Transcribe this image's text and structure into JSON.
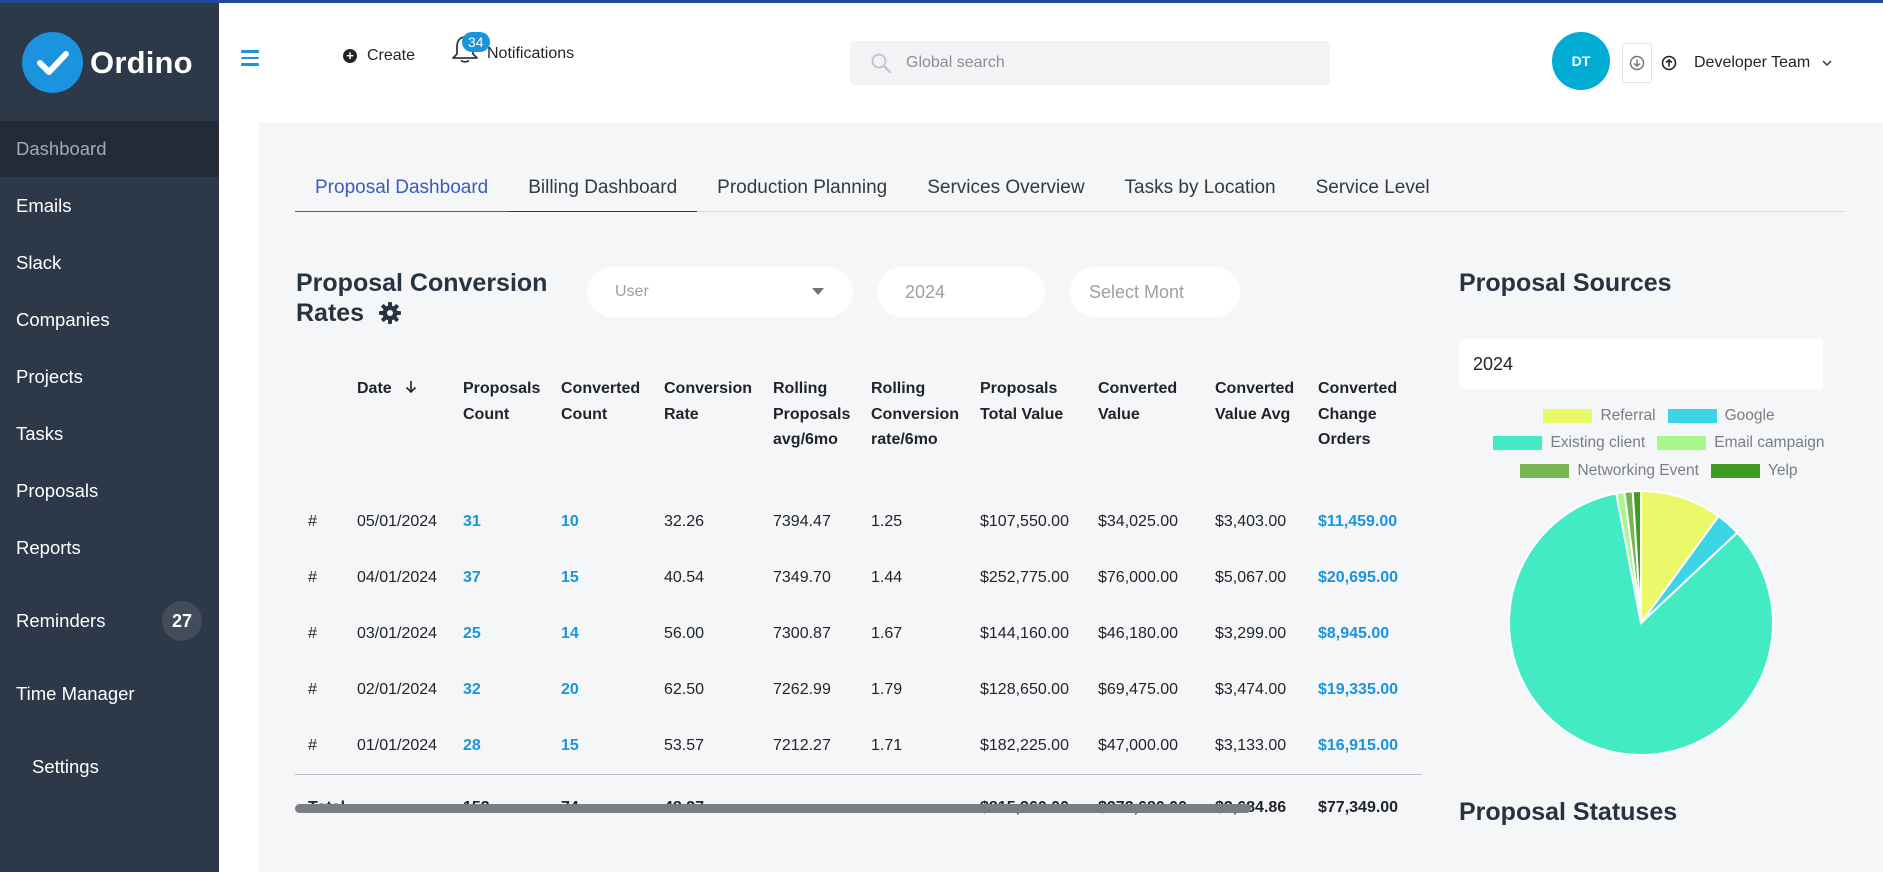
{
  "app": {
    "name": "Ordino"
  },
  "sidebar": {
    "items": [
      {
        "label": "Dashboard",
        "active": true
      },
      {
        "label": "Emails"
      },
      {
        "label": "Slack"
      },
      {
        "label": "Companies"
      },
      {
        "label": "Projects"
      },
      {
        "label": "Tasks"
      },
      {
        "label": "Proposals"
      },
      {
        "label": "Reports"
      },
      {
        "label": "Reminders",
        "badge": "27"
      },
      {
        "label": "Time Manager"
      },
      {
        "label": "Settings"
      }
    ]
  },
  "header": {
    "create_label": "Create",
    "notifications_label": "Notifications",
    "notifications_count": "34",
    "search_placeholder": "Global search",
    "avatar_initials": "DT",
    "team_label": "Developer Team"
  },
  "tabs": [
    {
      "label": "Proposal Dashboard",
      "active": true
    },
    {
      "label": "Billing Dashboard"
    },
    {
      "label": "Production Planning"
    },
    {
      "label": "Services Overview"
    },
    {
      "label": "Tasks by Location"
    },
    {
      "label": "Service Level"
    }
  ],
  "conversion": {
    "title_line1": "Proposal Conversion",
    "title_line2": "Rates",
    "filters": {
      "user_placeholder": "User",
      "year_placeholder": "2024",
      "month_placeholder": "Select Mont"
    },
    "columns": {
      "index": "",
      "date": "Date",
      "proposals_count": "Proposals Count",
      "converted_count": "Converted Count",
      "conversion_rate": "Conversion Rate",
      "rolling_proposals": "Rolling Proposals avg/6mo",
      "rolling_conversion": "Rolling Conversion rate/6mo",
      "proposals_total_value": "Proposals Total Value",
      "converted_value": "Converted Value",
      "converted_value_avg": "Converted Value Avg",
      "converted_change_orders": "Converted Change Orders"
    },
    "rows": [
      {
        "index": "#",
        "date": "05/01/2024",
        "proposals_count": "31",
        "converted_count": "10",
        "conversion_rate": "32.26",
        "rolling_proposals": "7394.47",
        "rolling_conversion": "1.25",
        "proposals_total_value": "$107,550.00",
        "converted_value": "$34,025.00",
        "converted_value_avg": "$3,403.00",
        "converted_change_orders": "$11,459.00"
      },
      {
        "index": "#",
        "date": "04/01/2024",
        "proposals_count": "37",
        "converted_count": "15",
        "conversion_rate": "40.54",
        "rolling_proposals": "7349.70",
        "rolling_conversion": "1.44",
        "proposals_total_value": "$252,775.00",
        "converted_value": "$76,000.00",
        "converted_value_avg": "$5,067.00",
        "converted_change_orders": "$20,695.00"
      },
      {
        "index": "#",
        "date": "03/01/2024",
        "proposals_count": "25",
        "converted_count": "14",
        "conversion_rate": "56.00",
        "rolling_proposals": "7300.87",
        "rolling_conversion": "1.67",
        "proposals_total_value": "$144,160.00",
        "converted_value": "$46,180.00",
        "converted_value_avg": "$3,299.00",
        "converted_change_orders": "$8,945.00"
      },
      {
        "index": "#",
        "date": "02/01/2024",
        "proposals_count": "32",
        "converted_count": "20",
        "conversion_rate": "62.50",
        "rolling_proposals": "7262.99",
        "rolling_conversion": "1.79",
        "proposals_total_value": "$128,650.00",
        "converted_value": "$69,475.00",
        "converted_value_avg": "$3,474.00",
        "converted_change_orders": "$19,335.00"
      },
      {
        "index": "#",
        "date": "01/01/2024",
        "proposals_count": "28",
        "converted_count": "15",
        "conversion_rate": "53.57",
        "rolling_proposals": "7212.27",
        "rolling_conversion": "1.71",
        "proposals_total_value": "$182,225.00",
        "converted_value": "$47,000.00",
        "converted_value_avg": "$3,133.00",
        "converted_change_orders": "$16,915.00"
      }
    ],
    "total": {
      "index": "Total",
      "date": "-",
      "proposals_count": "153",
      "converted_count": "74",
      "conversion_rate": "48.37",
      "rolling_proposals": "-",
      "rolling_conversion": "-",
      "proposals_total_value": "$815,360.00",
      "converted_value": "$272,680.00",
      "converted_value_avg": "$3,684.86",
      "converted_change_orders": "$77,349.00"
    }
  },
  "sources": {
    "title": "Proposal Sources",
    "year": "2024"
  },
  "statuses": {
    "title": "Proposal Statuses"
  },
  "chart_data": {
    "type": "pie",
    "title": "",
    "legend_position": "top",
    "slices": [
      {
        "name": "Referral",
        "value": 10,
        "color": "#ebf86a"
      },
      {
        "name": "Google",
        "value": 3,
        "color": "#3dd4e6"
      },
      {
        "name": "Existing client",
        "value": 84,
        "color": "#43ebc4"
      },
      {
        "name": "Email campaign",
        "value": 1,
        "color": "#a8f78c"
      },
      {
        "name": "Networking Event",
        "value": 1,
        "color": "#76b552"
      },
      {
        "name": "Yelp",
        "value": 1,
        "color": "#3d9b20"
      }
    ]
  }
}
